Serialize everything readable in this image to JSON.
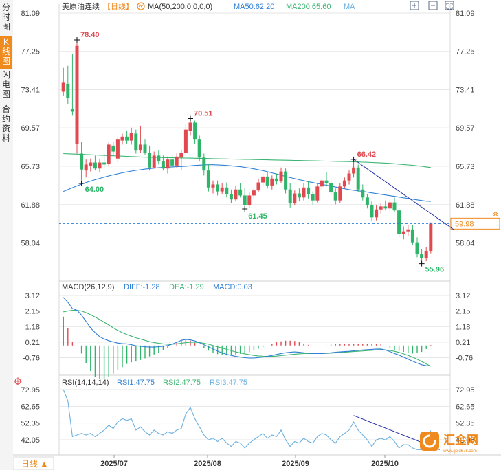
{
  "sidebar": {
    "tabs": [
      {
        "label": "分时图",
        "active": false
      },
      {
        "label": "K线图",
        "active": true
      },
      {
        "label": "闪电图",
        "active": false
      },
      {
        "label": "合约资料",
        "active": false
      }
    ],
    "period_button": "日线 ▲"
  },
  "header": {
    "instrument": "美原油连续",
    "period": "【日线】",
    "ma_label": "MA(50,200,0,0,0,0)",
    "ma50_label": "MA50:62.20",
    "ma200_label": "MA200:65.60",
    "ma_extra": "MA",
    "icons": [
      "zoom-in-icon",
      "zoom-out-icon",
      "fullscreen-icon"
    ]
  },
  "macd_header": {
    "name": "MACD(26,12,9)",
    "diff": "DIFF:-1.28",
    "dea": "DEA:-1.29",
    "macd": "MACD:0.03"
  },
  "rsi_header": {
    "name": "RSI(14,14,14)",
    "rsi1": "RSI1:47.75",
    "rsi2": "RSI2:47.75",
    "rsi3": "RSI3:47.75"
  },
  "watermark": {
    "text": "汇金网",
    "sub": "www.gold678.com"
  },
  "colors": {
    "up": "#e0494f",
    "down": "#2fb56a",
    "ma50": "#2f7fd6",
    "ma200": "#3cb572",
    "trend": "#1f2fa3",
    "current": "#ef8a1f",
    "grid": "#e6e6e6"
  },
  "chart_data": [
    {
      "type": "candlestick",
      "title": "美原油连续",
      "yticks": [
        "81.09",
        "77.25",
        "73.41",
        "69.57",
        "65.73",
        "61.88",
        "58.04"
      ],
      "ylim": [
        55.2,
        81.09
      ],
      "xticks": [
        "2025/07",
        "2025/08",
        "2025/09",
        "2025/10"
      ],
      "current_price": "59.98",
      "annotations": {
        "high1": "78.40",
        "high2": "70.51",
        "high3": "66.42",
        "low1": "64.00",
        "low2": "61.45",
        "low3": "55.96"
      },
      "candles": [
        {
          "o": 73.2,
          "h": 75.6,
          "l": 72.8,
          "c": 74.1
        },
        {
          "o": 74.0,
          "h": 75.8,
          "l": 72.0,
          "c": 72.6
        },
        {
          "o": 71.5,
          "h": 77.0,
          "l": 70.8,
          "c": 71.2
        },
        {
          "o": 68.0,
          "h": 78.4,
          "l": 67.0,
          "c": 77.8
        },
        {
          "o": 67.0,
          "h": 68.2,
          "l": 64.0,
          "c": 65.4
        },
        {
          "o": 65.3,
          "h": 66.4,
          "l": 64.6,
          "c": 65.9
        },
        {
          "o": 65.8,
          "h": 66.5,
          "l": 65.2,
          "c": 66.1
        },
        {
          "o": 66.1,
          "h": 66.8,
          "l": 65.3,
          "c": 65.5
        },
        {
          "o": 65.5,
          "h": 66.4,
          "l": 65.1,
          "c": 66.1
        },
        {
          "o": 66.1,
          "h": 67.0,
          "l": 65.6,
          "c": 65.9
        },
        {
          "o": 66.0,
          "h": 68.1,
          "l": 65.8,
          "c": 67.9
        },
        {
          "o": 67.8,
          "h": 68.2,
          "l": 66.8,
          "c": 67.2
        },
        {
          "o": 66.5,
          "h": 68.7,
          "l": 66.1,
          "c": 68.4
        },
        {
          "o": 68.3,
          "h": 69.0,
          "l": 67.9,
          "c": 68.7
        },
        {
          "o": 68.7,
          "h": 69.3,
          "l": 68.0,
          "c": 68.3
        },
        {
          "o": 68.3,
          "h": 69.6,
          "l": 67.9,
          "c": 69.1
        },
        {
          "o": 69.0,
          "h": 69.4,
          "l": 67.0,
          "c": 67.3
        },
        {
          "o": 67.3,
          "h": 69.8,
          "l": 67.1,
          "c": 67.9
        },
        {
          "o": 67.9,
          "h": 68.4,
          "l": 66.9,
          "c": 67.1
        },
        {
          "o": 67.1,
          "h": 67.8,
          "l": 65.3,
          "c": 65.6
        },
        {
          "o": 65.6,
          "h": 67.2,
          "l": 65.5,
          "c": 66.8
        },
        {
          "o": 66.8,
          "h": 67.3,
          "l": 65.9,
          "c": 66.2
        },
        {
          "o": 66.2,
          "h": 66.8,
          "l": 65.3,
          "c": 65.5
        },
        {
          "o": 65.5,
          "h": 66.7,
          "l": 65.0,
          "c": 66.4
        },
        {
          "o": 66.4,
          "h": 66.9,
          "l": 65.5,
          "c": 65.8
        },
        {
          "o": 65.8,
          "h": 67.0,
          "l": 65.6,
          "c": 66.7
        },
        {
          "o": 66.6,
          "h": 67.4,
          "l": 65.3,
          "c": 67.1
        },
        {
          "o": 67.1,
          "h": 70.0,
          "l": 66.8,
          "c": 69.4
        },
        {
          "o": 69.3,
          "h": 70.5,
          "l": 68.8,
          "c": 70.1
        },
        {
          "o": 70.1,
          "h": 70.3,
          "l": 68.0,
          "c": 68.4
        },
        {
          "o": 68.4,
          "h": 68.8,
          "l": 66.2,
          "c": 66.6
        },
        {
          "o": 66.6,
          "h": 67.0,
          "l": 64.8,
          "c": 65.3
        },
        {
          "o": 65.3,
          "h": 66.0,
          "l": 63.2,
          "c": 63.6
        },
        {
          "o": 63.6,
          "h": 64.3,
          "l": 63.0,
          "c": 63.9
        },
        {
          "o": 63.9,
          "h": 64.3,
          "l": 62.8,
          "c": 63.2
        },
        {
          "o": 63.2,
          "h": 64.0,
          "l": 62.9,
          "c": 63.6
        },
        {
          "o": 63.6,
          "h": 64.1,
          "l": 62.6,
          "c": 62.9
        },
        {
          "o": 62.9,
          "h": 63.4,
          "l": 62.0,
          "c": 62.4
        },
        {
          "o": 62.4,
          "h": 63.8,
          "l": 62.2,
          "c": 63.4
        },
        {
          "o": 63.4,
          "h": 64.0,
          "l": 62.6,
          "c": 62.8
        },
        {
          "o": 62.8,
          "h": 63.6,
          "l": 61.4,
          "c": 61.8
        },
        {
          "o": 61.8,
          "h": 63.1,
          "l": 61.6,
          "c": 62.8
        },
        {
          "o": 62.8,
          "h": 63.6,
          "l": 62.5,
          "c": 63.3
        },
        {
          "o": 63.3,
          "h": 64.5,
          "l": 63.1,
          "c": 64.1
        },
        {
          "o": 64.1,
          "h": 65.0,
          "l": 63.8,
          "c": 64.7
        },
        {
          "o": 64.7,
          "h": 65.2,
          "l": 63.5,
          "c": 63.8
        },
        {
          "o": 63.8,
          "h": 64.8,
          "l": 63.4,
          "c": 64.5
        },
        {
          "o": 64.5,
          "h": 65.0,
          "l": 63.9,
          "c": 64.2
        },
        {
          "o": 64.2,
          "h": 65.6,
          "l": 64.0,
          "c": 65.2
        },
        {
          "o": 65.2,
          "h": 65.5,
          "l": 63.0,
          "c": 63.4
        },
        {
          "o": 63.4,
          "h": 64.0,
          "l": 61.6,
          "c": 62.0
        },
        {
          "o": 62.0,
          "h": 63.3,
          "l": 61.8,
          "c": 63.0
        },
        {
          "o": 63.0,
          "h": 63.5,
          "l": 62.2,
          "c": 62.6
        },
        {
          "o": 62.6,
          "h": 64.0,
          "l": 62.3,
          "c": 63.6
        },
        {
          "o": 63.6,
          "h": 64.2,
          "l": 62.5,
          "c": 62.9
        },
        {
          "o": 62.9,
          "h": 63.2,
          "l": 61.8,
          "c": 62.3
        },
        {
          "o": 62.3,
          "h": 64.0,
          "l": 62.1,
          "c": 63.7
        },
        {
          "o": 63.7,
          "h": 64.6,
          "l": 63.3,
          "c": 64.3
        },
        {
          "o": 64.3,
          "h": 65.1,
          "l": 63.7,
          "c": 64.0
        },
        {
          "o": 64.0,
          "h": 64.4,
          "l": 62.8,
          "c": 63.1
        },
        {
          "o": 63.1,
          "h": 63.5,
          "l": 61.9,
          "c": 62.3
        },
        {
          "o": 62.3,
          "h": 64.0,
          "l": 62.0,
          "c": 63.7
        },
        {
          "o": 63.7,
          "h": 64.6,
          "l": 63.5,
          "c": 64.3
        },
        {
          "o": 64.3,
          "h": 65.3,
          "l": 63.9,
          "c": 65.0
        },
        {
          "o": 65.0,
          "h": 66.4,
          "l": 64.6,
          "c": 65.6
        },
        {
          "o": 65.6,
          "h": 65.9,
          "l": 63.1,
          "c": 63.4
        },
        {
          "o": 63.4,
          "h": 63.9,
          "l": 62.3,
          "c": 62.6
        },
        {
          "o": 62.6,
          "h": 62.9,
          "l": 61.5,
          "c": 61.8
        },
        {
          "o": 61.8,
          "h": 62.2,
          "l": 60.2,
          "c": 60.6
        },
        {
          "o": 60.6,
          "h": 61.8,
          "l": 60.3,
          "c": 61.4
        },
        {
          "o": 61.4,
          "h": 62.0,
          "l": 61.0,
          "c": 61.7
        },
        {
          "o": 61.7,
          "h": 62.3,
          "l": 61.3,
          "c": 61.5
        },
        {
          "o": 61.5,
          "h": 62.4,
          "l": 61.2,
          "c": 62.1
        },
        {
          "o": 62.1,
          "h": 62.6,
          "l": 61.1,
          "c": 61.3
        },
        {
          "o": 61.3,
          "h": 61.6,
          "l": 58.6,
          "c": 58.9
        },
        {
          "o": 58.9,
          "h": 59.7,
          "l": 58.4,
          "c": 59.2
        },
        {
          "o": 59.2,
          "h": 59.8,
          "l": 58.7,
          "c": 59.4
        },
        {
          "o": 59.4,
          "h": 59.8,
          "l": 57.8,
          "c": 58.1
        },
        {
          "o": 58.1,
          "h": 58.6,
          "l": 56.6,
          "c": 56.9
        },
        {
          "o": 56.9,
          "h": 57.4,
          "l": 55.96,
          "c": 56.5
        },
        {
          "o": 56.5,
          "h": 57.6,
          "l": 56.2,
          "c": 57.2
        },
        {
          "o": 57.2,
          "h": 60.1,
          "l": 57.0,
          "c": 59.98
        }
      ],
      "ma50": [
        63.2,
        63.39,
        63.58,
        63.76,
        63.93,
        64.09,
        64.24,
        64.38,
        64.51,
        64.64,
        64.76,
        64.87,
        64.97,
        65.07,
        65.16,
        65.24,
        65.31,
        65.38,
        65.44,
        65.49,
        65.54,
        65.58,
        65.61,
        65.63,
        65.66,
        65.68,
        65.7,
        65.73,
        65.77,
        65.81,
        65.84,
        65.87,
        65.88,
        65.88,
        65.87,
        65.84,
        65.81,
        65.77,
        65.73,
        65.68,
        65.62,
        65.55,
        65.47,
        65.38,
        65.29,
        65.18,
        65.06,
        64.95,
        64.83,
        64.71,
        64.59,
        64.49,
        64.38,
        64.28,
        64.18,
        64.09,
        64.0,
        63.91,
        63.83,
        63.74,
        63.65,
        63.56,
        63.47,
        63.39,
        63.32,
        63.26,
        63.2,
        63.13,
        63.06,
        62.99,
        62.92,
        62.85,
        62.78,
        62.71,
        62.64,
        62.57,
        62.5,
        62.43,
        62.36,
        62.29,
        62.23,
        62.2
      ],
      "ma200": [
        67.0,
        66.98,
        66.96,
        66.94,
        66.92,
        66.9,
        66.88,
        66.86,
        66.84,
        66.82,
        66.8,
        66.78,
        66.76,
        66.74,
        66.72,
        66.7,
        66.68,
        66.66,
        66.64,
        66.63,
        66.62,
        66.61,
        66.6,
        66.59,
        66.58,
        66.57,
        66.56,
        66.55,
        66.54,
        66.53,
        66.52,
        66.51,
        66.5,
        66.49,
        66.48,
        66.47,
        66.46,
        66.45,
        66.44,
        66.43,
        66.42,
        66.41,
        66.4,
        66.39,
        66.38,
        66.37,
        66.36,
        66.35,
        66.34,
        66.33,
        66.32,
        66.31,
        66.3,
        66.29,
        66.28,
        66.27,
        66.26,
        66.25,
        66.24,
        66.23,
        66.22,
        66.21,
        66.2,
        66.19,
        66.18,
        66.16,
        66.14,
        66.12,
        66.1,
        66.08,
        66.06,
        66.04,
        66.01,
        65.98,
        65.94,
        65.9,
        65.86,
        65.82,
        65.77,
        65.72,
        65.66,
        65.6
      ]
    },
    {
      "type": "macd",
      "yticks": [
        "3.12",
        "2.15",
        "1.18",
        "0.21",
        "-0.76"
      ],
      "ylim": [
        -1.3,
        3.12
      ],
      "diff": [
        3.0,
        2.7,
        2.3,
        2.2,
        1.9,
        1.5,
        1.1,
        0.8,
        0.55,
        0.4,
        0.3,
        0.22,
        0.15,
        0.12,
        0.1,
        0.05,
        -0.02,
        -0.05,
        -0.08,
        -0.1,
        -0.1,
        -0.08,
        -0.05,
        0.0,
        0.08,
        0.2,
        0.32,
        0.38,
        0.35,
        0.28,
        0.18,
        0.05,
        -0.08,
        -0.22,
        -0.35,
        -0.46,
        -0.55,
        -0.62,
        -0.68,
        -0.72,
        -0.76,
        -0.78,
        -0.78,
        -0.75,
        -0.72,
        -0.68,
        -0.62,
        -0.56,
        -0.5,
        -0.45,
        -0.42,
        -0.4,
        -0.42,
        -0.45,
        -0.48,
        -0.5,
        -0.5,
        -0.5,
        -0.48,
        -0.45,
        -0.42,
        -0.4,
        -0.38,
        -0.36,
        -0.33,
        -0.3,
        -0.28,
        -0.26,
        -0.24,
        -0.22,
        -0.22,
        -0.28,
        -0.38,
        -0.5,
        -0.6,
        -0.72,
        -0.85,
        -0.98,
        -1.1,
        -1.2,
        -1.26,
        -1.28
      ],
      "dea": [
        2.1,
        2.15,
        2.2,
        2.2,
        2.15,
        2.05,
        1.92,
        1.78,
        1.62,
        1.45,
        1.28,
        1.1,
        0.94,
        0.8,
        0.68,
        0.58,
        0.48,
        0.4,
        0.32,
        0.24,
        0.18,
        0.14,
        0.1,
        0.08,
        0.08,
        0.1,
        0.14,
        0.18,
        0.2,
        0.2,
        0.18,
        0.14,
        0.08,
        0.0,
        -0.08,
        -0.16,
        -0.24,
        -0.32,
        -0.4,
        -0.46,
        -0.52,
        -0.57,
        -0.62,
        -0.65,
        -0.67,
        -0.68,
        -0.68,
        -0.66,
        -0.63,
        -0.6,
        -0.57,
        -0.54,
        -0.52,
        -0.5,
        -0.5,
        -0.5,
        -0.5,
        -0.5,
        -0.49,
        -0.48,
        -0.46,
        -0.44,
        -0.42,
        -0.4,
        -0.38,
        -0.36,
        -0.34,
        -0.32,
        -0.3,
        -0.28,
        -0.27,
        -0.28,
        -0.31,
        -0.36,
        -0.43,
        -0.52,
        -0.62,
        -0.73,
        -0.86,
        -1.0,
        -1.15,
        -1.29
      ],
      "hist": [
        1.8,
        1.1,
        0.2,
        0.0,
        -0.5,
        -1.1,
        -1.6,
        -1.95,
        -2.1,
        -2.1,
        -1.95,
        -1.75,
        -1.55,
        -1.35,
        -1.15,
        -1.05,
        -1.0,
        -0.9,
        -0.8,
        -0.68,
        -0.56,
        -0.44,
        -0.3,
        -0.16,
        0.0,
        0.2,
        0.36,
        0.4,
        0.3,
        0.16,
        0.0,
        -0.18,
        -0.32,
        -0.44,
        -0.54,
        -0.6,
        -0.62,
        -0.6,
        -0.56,
        -0.52,
        -0.48,
        -0.42,
        -0.32,
        -0.2,
        -0.1,
        0.0,
        0.12,
        0.2,
        0.26,
        0.3,
        0.3,
        0.28,
        0.2,
        0.1,
        0.04,
        0.0,
        0.0,
        0.0,
        -0.02,
        0.06,
        0.1,
        0.08,
        0.08,
        0.08,
        0.1,
        0.12,
        0.12,
        0.12,
        0.12,
        0.12,
        0.1,
        0.0,
        -0.14,
        -0.28,
        -0.34,
        -0.4,
        -0.46,
        -0.5,
        -0.48,
        -0.4,
        -0.22,
        0.03
      ]
    },
    {
      "type": "rsi",
      "yticks": [
        "72.95",
        "62.65",
        "52.35",
        "42.05"
      ],
      "ylim": [
        35,
        75
      ],
      "rsi": [
        73,
        66,
        44,
        45,
        46,
        45,
        46,
        44,
        46,
        48,
        51,
        49,
        53,
        55,
        54,
        55,
        48,
        50,
        47,
        45,
        48,
        46,
        45,
        47,
        46,
        48,
        49,
        58,
        62,
        55,
        50,
        45,
        42,
        43,
        41,
        43,
        40,
        38,
        41,
        40,
        37,
        40,
        42,
        44,
        46,
        43,
        45,
        44,
        48,
        42,
        38,
        41,
        40,
        43,
        41,
        40,
        44,
        46,
        45,
        42,
        40,
        44,
        46,
        48,
        53,
        48,
        45,
        42,
        38,
        42,
        43,
        42,
        44,
        41,
        37,
        39,
        39,
        37,
        36,
        36,
        38,
        47.75
      ]
    }
  ]
}
